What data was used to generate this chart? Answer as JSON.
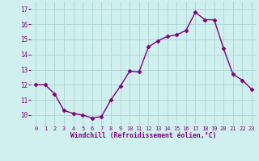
{
  "x": [
    0,
    1,
    2,
    3,
    4,
    5,
    6,
    7,
    8,
    9,
    10,
    11,
    12,
    13,
    14,
    15,
    16,
    17,
    18,
    19,
    20,
    21,
    22,
    23
  ],
  "y": [
    12.0,
    12.0,
    11.4,
    10.3,
    10.1,
    10.0,
    9.8,
    9.9,
    11.0,
    11.9,
    12.9,
    12.85,
    14.5,
    14.9,
    15.2,
    15.3,
    15.6,
    16.8,
    16.3,
    16.3,
    14.4,
    12.7,
    12.3,
    11.7
  ],
  "line_color": "#800080",
  "marker": "D",
  "marker_size": 2.5,
  "bg_color": "#d0f0f0",
  "grid_color": "#b0d8d8",
  "xlabel": "Windchill (Refroidissement éolien,°C)",
  "xlabel_color": "#800080",
  "tick_color": "#800080",
  "ylim": [
    9.3,
    17.5
  ],
  "xlim": [
    -0.5,
    23.5
  ],
  "yticks": [
    10,
    11,
    12,
    13,
    14,
    15,
    16,
    17
  ],
  "xticks": [
    0,
    1,
    2,
    3,
    4,
    5,
    6,
    7,
    8,
    9,
    10,
    11,
    12,
    13,
    14,
    15,
    16,
    17,
    18,
    19,
    20,
    21,
    22,
    23
  ],
  "figsize": [
    3.2,
    2.0
  ],
  "dpi": 100
}
